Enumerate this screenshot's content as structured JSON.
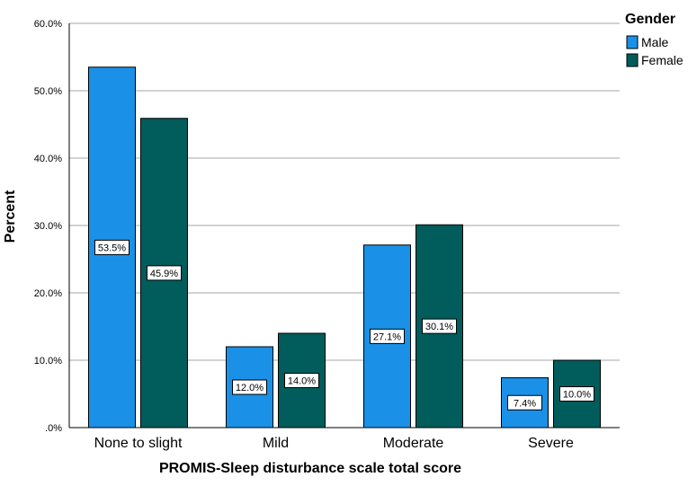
{
  "chart_data": {
    "type": "bar",
    "xlabel": "PROMIS-Sleep disturbance scale total score",
    "ylabel": "Percent",
    "ylim": [
      0,
      60
    ],
    "yticks": [
      ".0%",
      "10.0%",
      "20.0%",
      "30.0%",
      "40.0%",
      "50.0%",
      "60.0%"
    ],
    "categories": [
      "None to slight",
      "Mild",
      "Moderate",
      "Severe"
    ],
    "legend_title": "Gender",
    "legend_position": "top-right",
    "grid": true,
    "series": [
      {
        "name": "Male",
        "color": "#1a91e6",
        "values": [
          53.5,
          12.0,
          27.1,
          7.4
        ],
        "labels": [
          "53.5%",
          "12.0%",
          "27.1%",
          "7.4%"
        ]
      },
      {
        "name": "Female",
        "color": "#015c5c",
        "values": [
          45.9,
          14.0,
          30.1,
          10.0
        ],
        "labels": [
          "45.9%",
          "14.0%",
          "30.1%",
          "10.0%"
        ]
      }
    ]
  }
}
